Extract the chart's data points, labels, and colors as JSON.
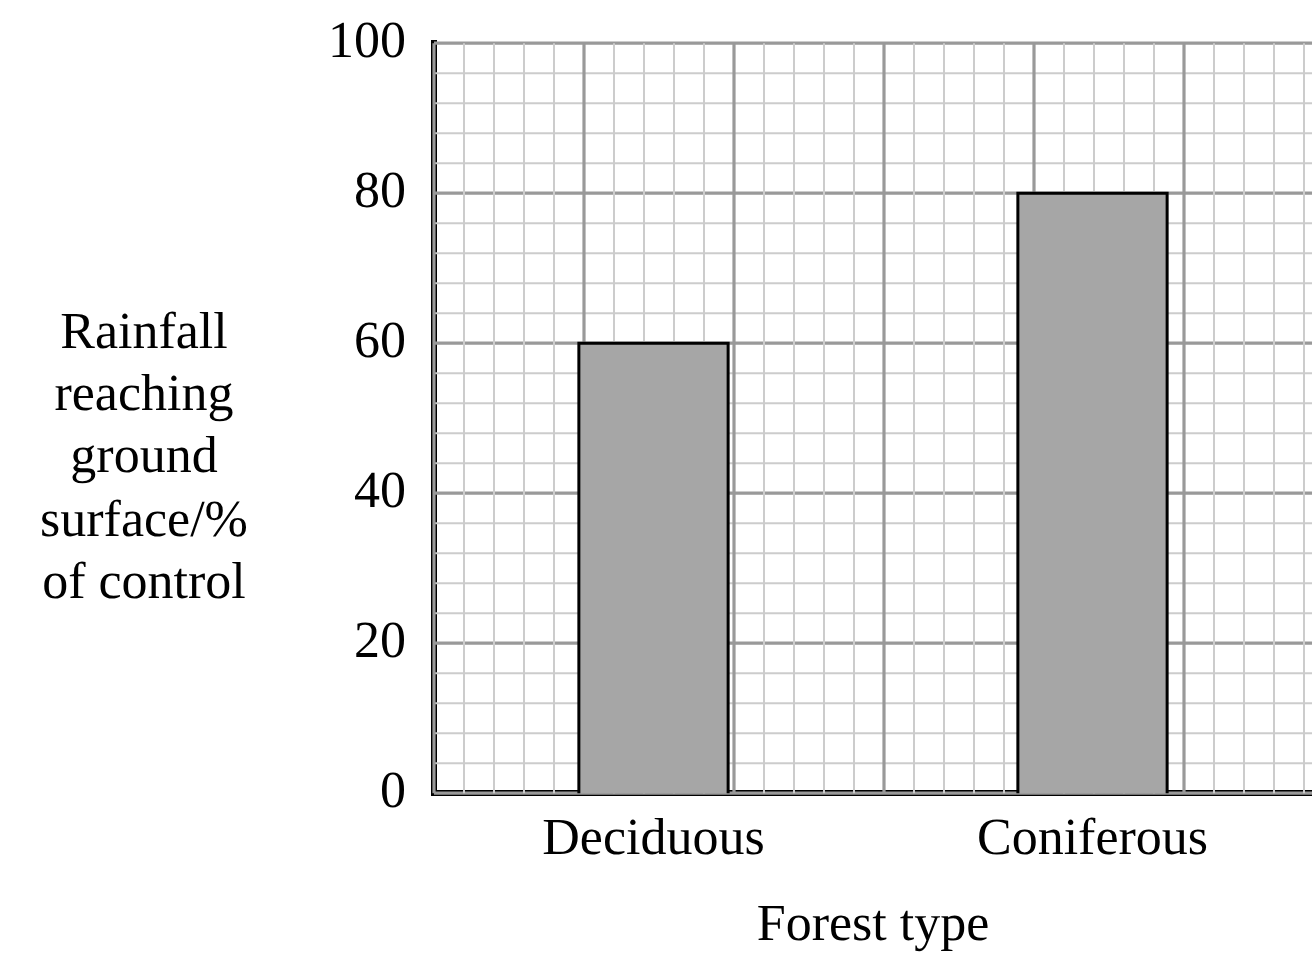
{
  "chart_data": {
    "type": "bar",
    "xlabel": "Forest type",
    "ylabel": "Rainfall reaching ground surface/% of control",
    "categories": [
      "Deciduous",
      "Coniferous"
    ],
    "values": [
      60,
      80
    ],
    "color": "#a6a6a6",
    "ylim": [
      0,
      100
    ],
    "yticks": [
      0,
      20,
      40,
      60,
      80,
      100
    ],
    "grid": true,
    "legend": false
  }
}
